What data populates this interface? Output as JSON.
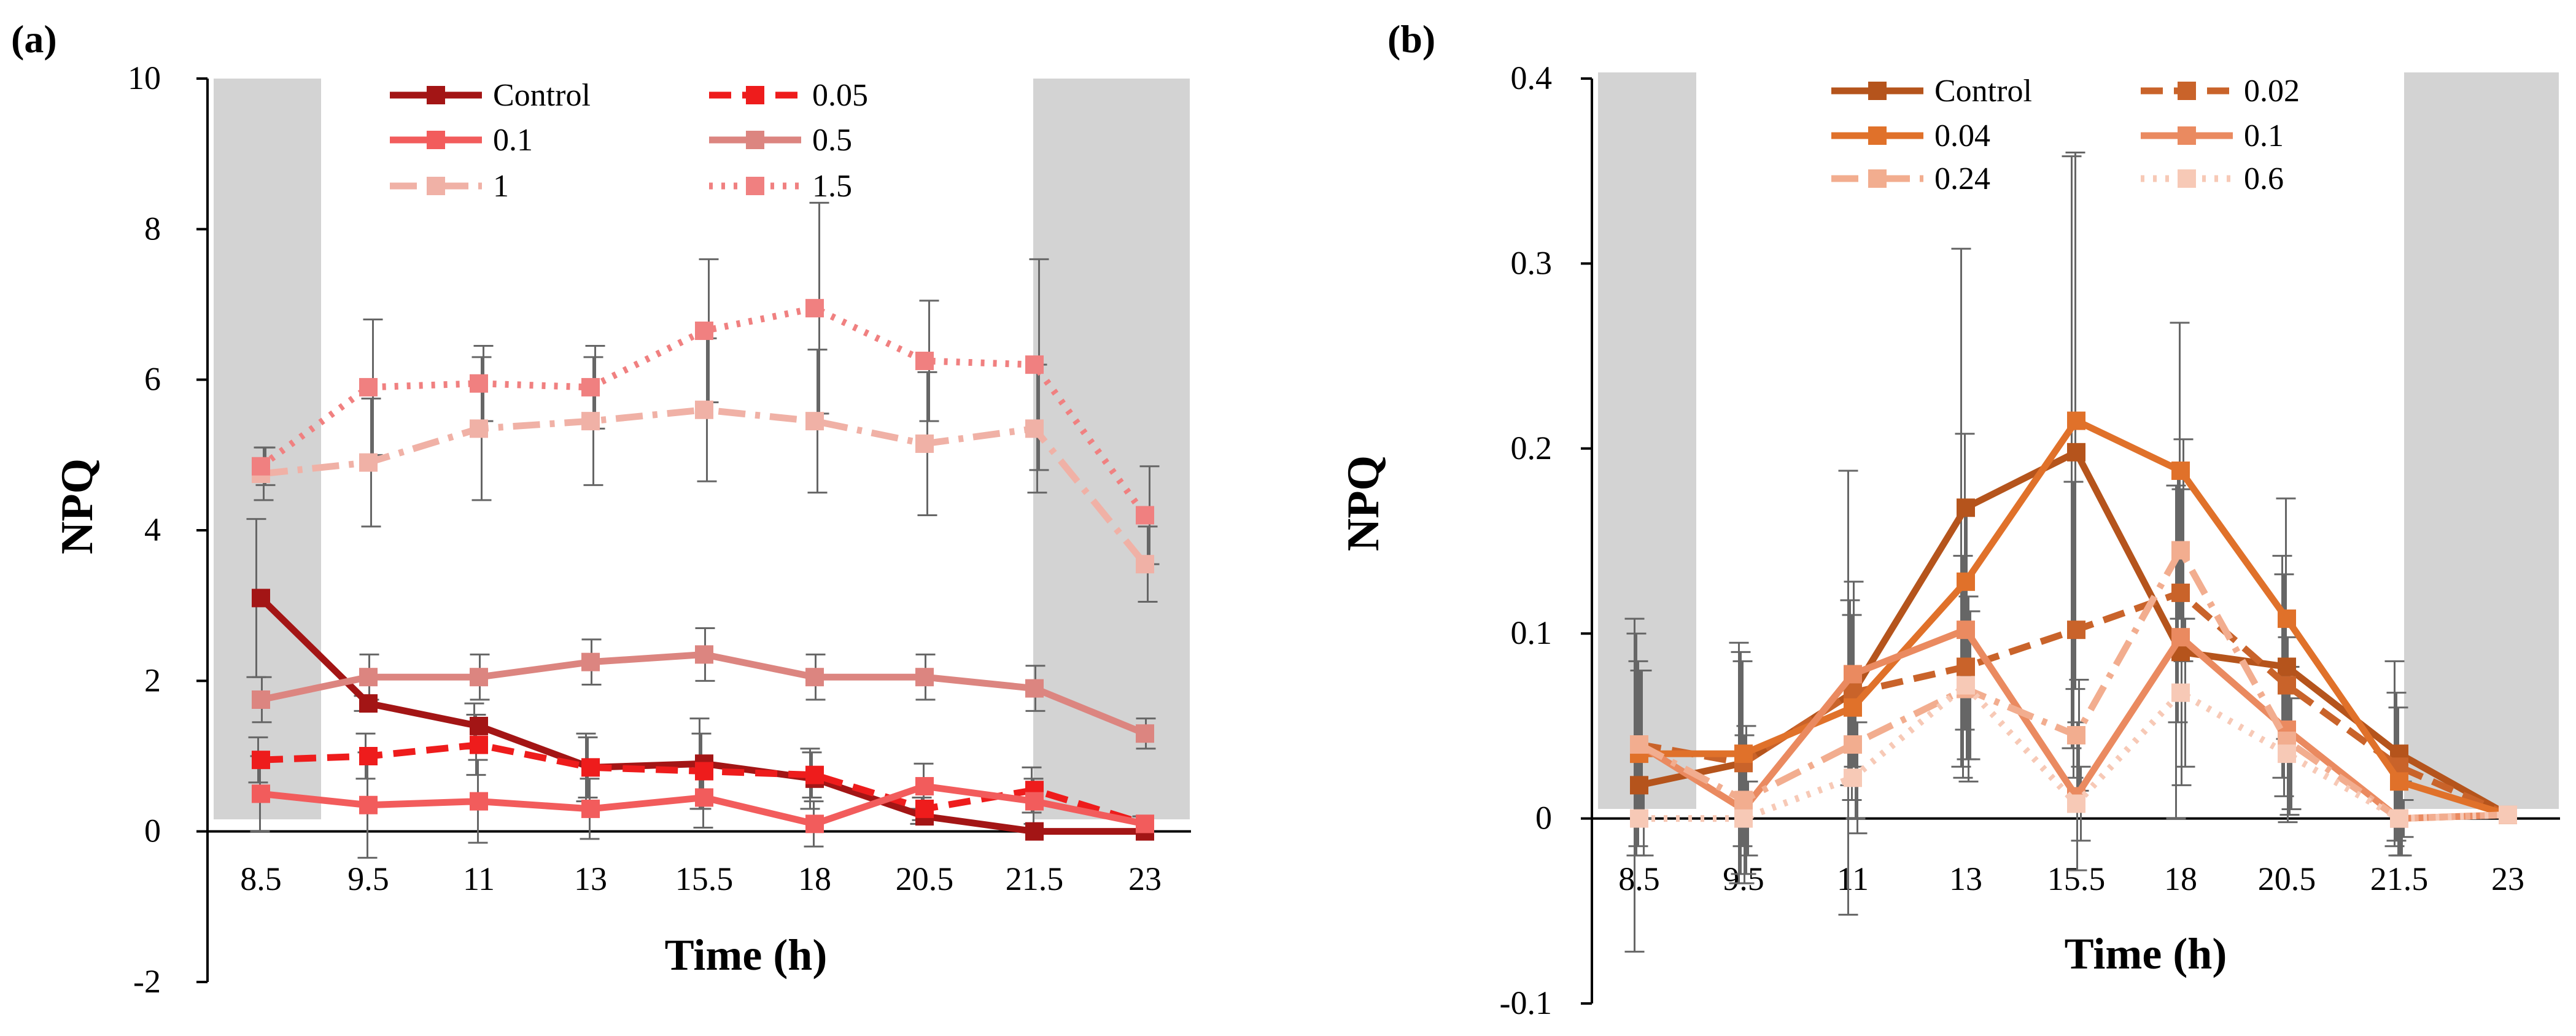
{
  "chart_data": [
    {
      "panel_label": "(a)",
      "type": "line",
      "xlabel": "Time (h)",
      "ylabel": "NPQ",
      "x": [
        "8.5",
        "9.5",
        "11",
        "13",
        "15.5",
        "18",
        "20.5",
        "21.5",
        "23"
      ],
      "ylim": [
        -2,
        10
      ],
      "yticks": [
        "-2",
        "0",
        "2",
        "4",
        "6",
        "8",
        "10"
      ],
      "shaded_categories": [
        "8.5",
        "21.5-23"
      ],
      "legend_position": "top-center",
      "series": [
        {
          "name": "Control",
          "color": "#a31515",
          "style": "solid",
          "values": [
            3.1,
            1.7,
            1.4,
            0.85,
            0.9,
            0.7,
            0.2,
            0.0,
            0.0
          ],
          "errors": [
            1.05,
            0.1,
            0.3,
            0.45,
            0.6,
            0.4,
            0.1,
            0.0,
            0.0
          ]
        },
        {
          "name": "0.05",
          "color": "#ee1c1c",
          "style": "dash",
          "values": [
            0.95,
            1.0,
            1.15,
            0.85,
            0.8,
            0.75,
            0.3,
            0.55,
            0.1
          ],
          "errors": [
            0.3,
            0.3,
            0.4,
            0.4,
            0.5,
            0.3,
            0.15,
            0.3,
            0.1
          ]
        },
        {
          "name": "0.1",
          "color": "#f25c5c",
          "style": "solid",
          "values": [
            0.5,
            0.35,
            0.4,
            0.3,
            0.45,
            0.1,
            0.6,
            0.4,
            0.1
          ],
          "errors": [
            0.5,
            0.7,
            0.55,
            0.4,
            0.4,
            0.3,
            0.3,
            0.3,
            0.1
          ]
        },
        {
          "name": "0.5",
          "color": "#dc8580",
          "style": "solid",
          "values": [
            1.75,
            2.05,
            2.05,
            2.25,
            2.35,
            2.05,
            2.05,
            1.9,
            1.3
          ],
          "errors": [
            0.3,
            0.3,
            0.3,
            0.3,
            0.35,
            0.3,
            0.3,
            0.3,
            0.2
          ]
        },
        {
          "name": "1",
          "color": "#f0b1a6",
          "style": "dashdot",
          "values": [
            4.75,
            4.9,
            5.35,
            5.45,
            5.6,
            5.45,
            5.15,
            5.35,
            3.55
          ],
          "errors": [
            0.35,
            0.85,
            0.95,
            0.85,
            0.95,
            0.95,
            0.95,
            0.85,
            0.5
          ]
        },
        {
          "name": "1.5",
          "color": "#f08080",
          "style": "dot",
          "values": [
            4.85,
            5.9,
            5.95,
            5.9,
            6.65,
            6.95,
            6.25,
            6.2,
            4.2
          ],
          "errors": [
            0.25,
            0.9,
            0.5,
            0.55,
            0.95,
            1.4,
            0.8,
            1.4,
            0.65
          ]
        }
      ]
    },
    {
      "panel_label": "(b)",
      "type": "line",
      "xlabel": "Time (h)",
      "ylabel": "NPQ",
      "x": [
        "8.5",
        "9.5",
        "11",
        "13",
        "15.5",
        "18",
        "20.5",
        "21.5",
        "23"
      ],
      "ylim": [
        -0.1,
        0.4
      ],
      "yticks": [
        "-0.1",
        "0",
        "0.1",
        "0.2",
        "0.3",
        "0.4"
      ],
      "shaded_categories": [
        "8.5",
        "21.5-23"
      ],
      "legend_position": "top-center",
      "series": [
        {
          "name": "Control",
          "color": "#b5541c",
          "style": "solid",
          "values": [
            0.018,
            0.03,
            0.068,
            0.168,
            0.198,
            0.09,
            0.082,
            0.035,
            0.002
          ],
          "errors": [
            0.09,
            0.065,
            0.12,
            0.14,
            0.16,
            0.09,
            0.06,
            0.05,
            0.0
          ]
        },
        {
          "name": "0.02",
          "color": "#c9632a",
          "style": "dash",
          "values": [
            0.04,
            0.03,
            0.068,
            0.082,
            0.102,
            0.122,
            0.072,
            0.028,
            0.002
          ],
          "errors": [
            0.06,
            0.06,
            0.05,
            0.06,
            0.08,
            0.07,
            0.06,
            0.04,
            0.0
          ]
        },
        {
          "name": "0.04",
          "color": "#e0712a",
          "style": "solid",
          "values": [
            0.035,
            0.035,
            0.06,
            0.128,
            0.215,
            0.188,
            0.108,
            0.02,
            0.002
          ],
          "errors": [
            0.05,
            0.05,
            0.05,
            0.08,
            0.145,
            0.08,
            0.065,
            0.04,
            0.0
          ]
        },
        {
          "name": "0.1",
          "color": "#ea8a60",
          "style": "solid",
          "values": [
            0.04,
            0.005,
            0.078,
            0.102,
            0.012,
            0.098,
            0.048,
            0.0,
            0.002
          ],
          "errors": [
            0.04,
            0.04,
            0.05,
            0.07,
            0.04,
            0.08,
            0.05,
            0.02,
            0.0
          ]
        },
        {
          "name": "0.24",
          "color": "#f2ad8f",
          "style": "dashdot",
          "values": [
            0.04,
            0.01,
            0.04,
            0.07,
            0.045,
            0.145,
            0.042,
            0.0,
            0.002
          ],
          "errors": [
            0.04,
            0.04,
            0.04,
            0.05,
            0.03,
            0.06,
            0.04,
            0.02,
            0.0
          ]
        },
        {
          "name": "0.6",
          "color": "#f7c9b6",
          "style": "dot",
          "values": [
            0.0,
            0.0,
            0.022,
            0.072,
            0.008,
            0.068,
            0.035,
            0.0,
            0.002
          ],
          "errors": [
            0.02,
            0.02,
            0.03,
            0.04,
            0.02,
            0.04,
            0.03,
            0.01,
            0.0
          ]
        }
      ]
    }
  ]
}
